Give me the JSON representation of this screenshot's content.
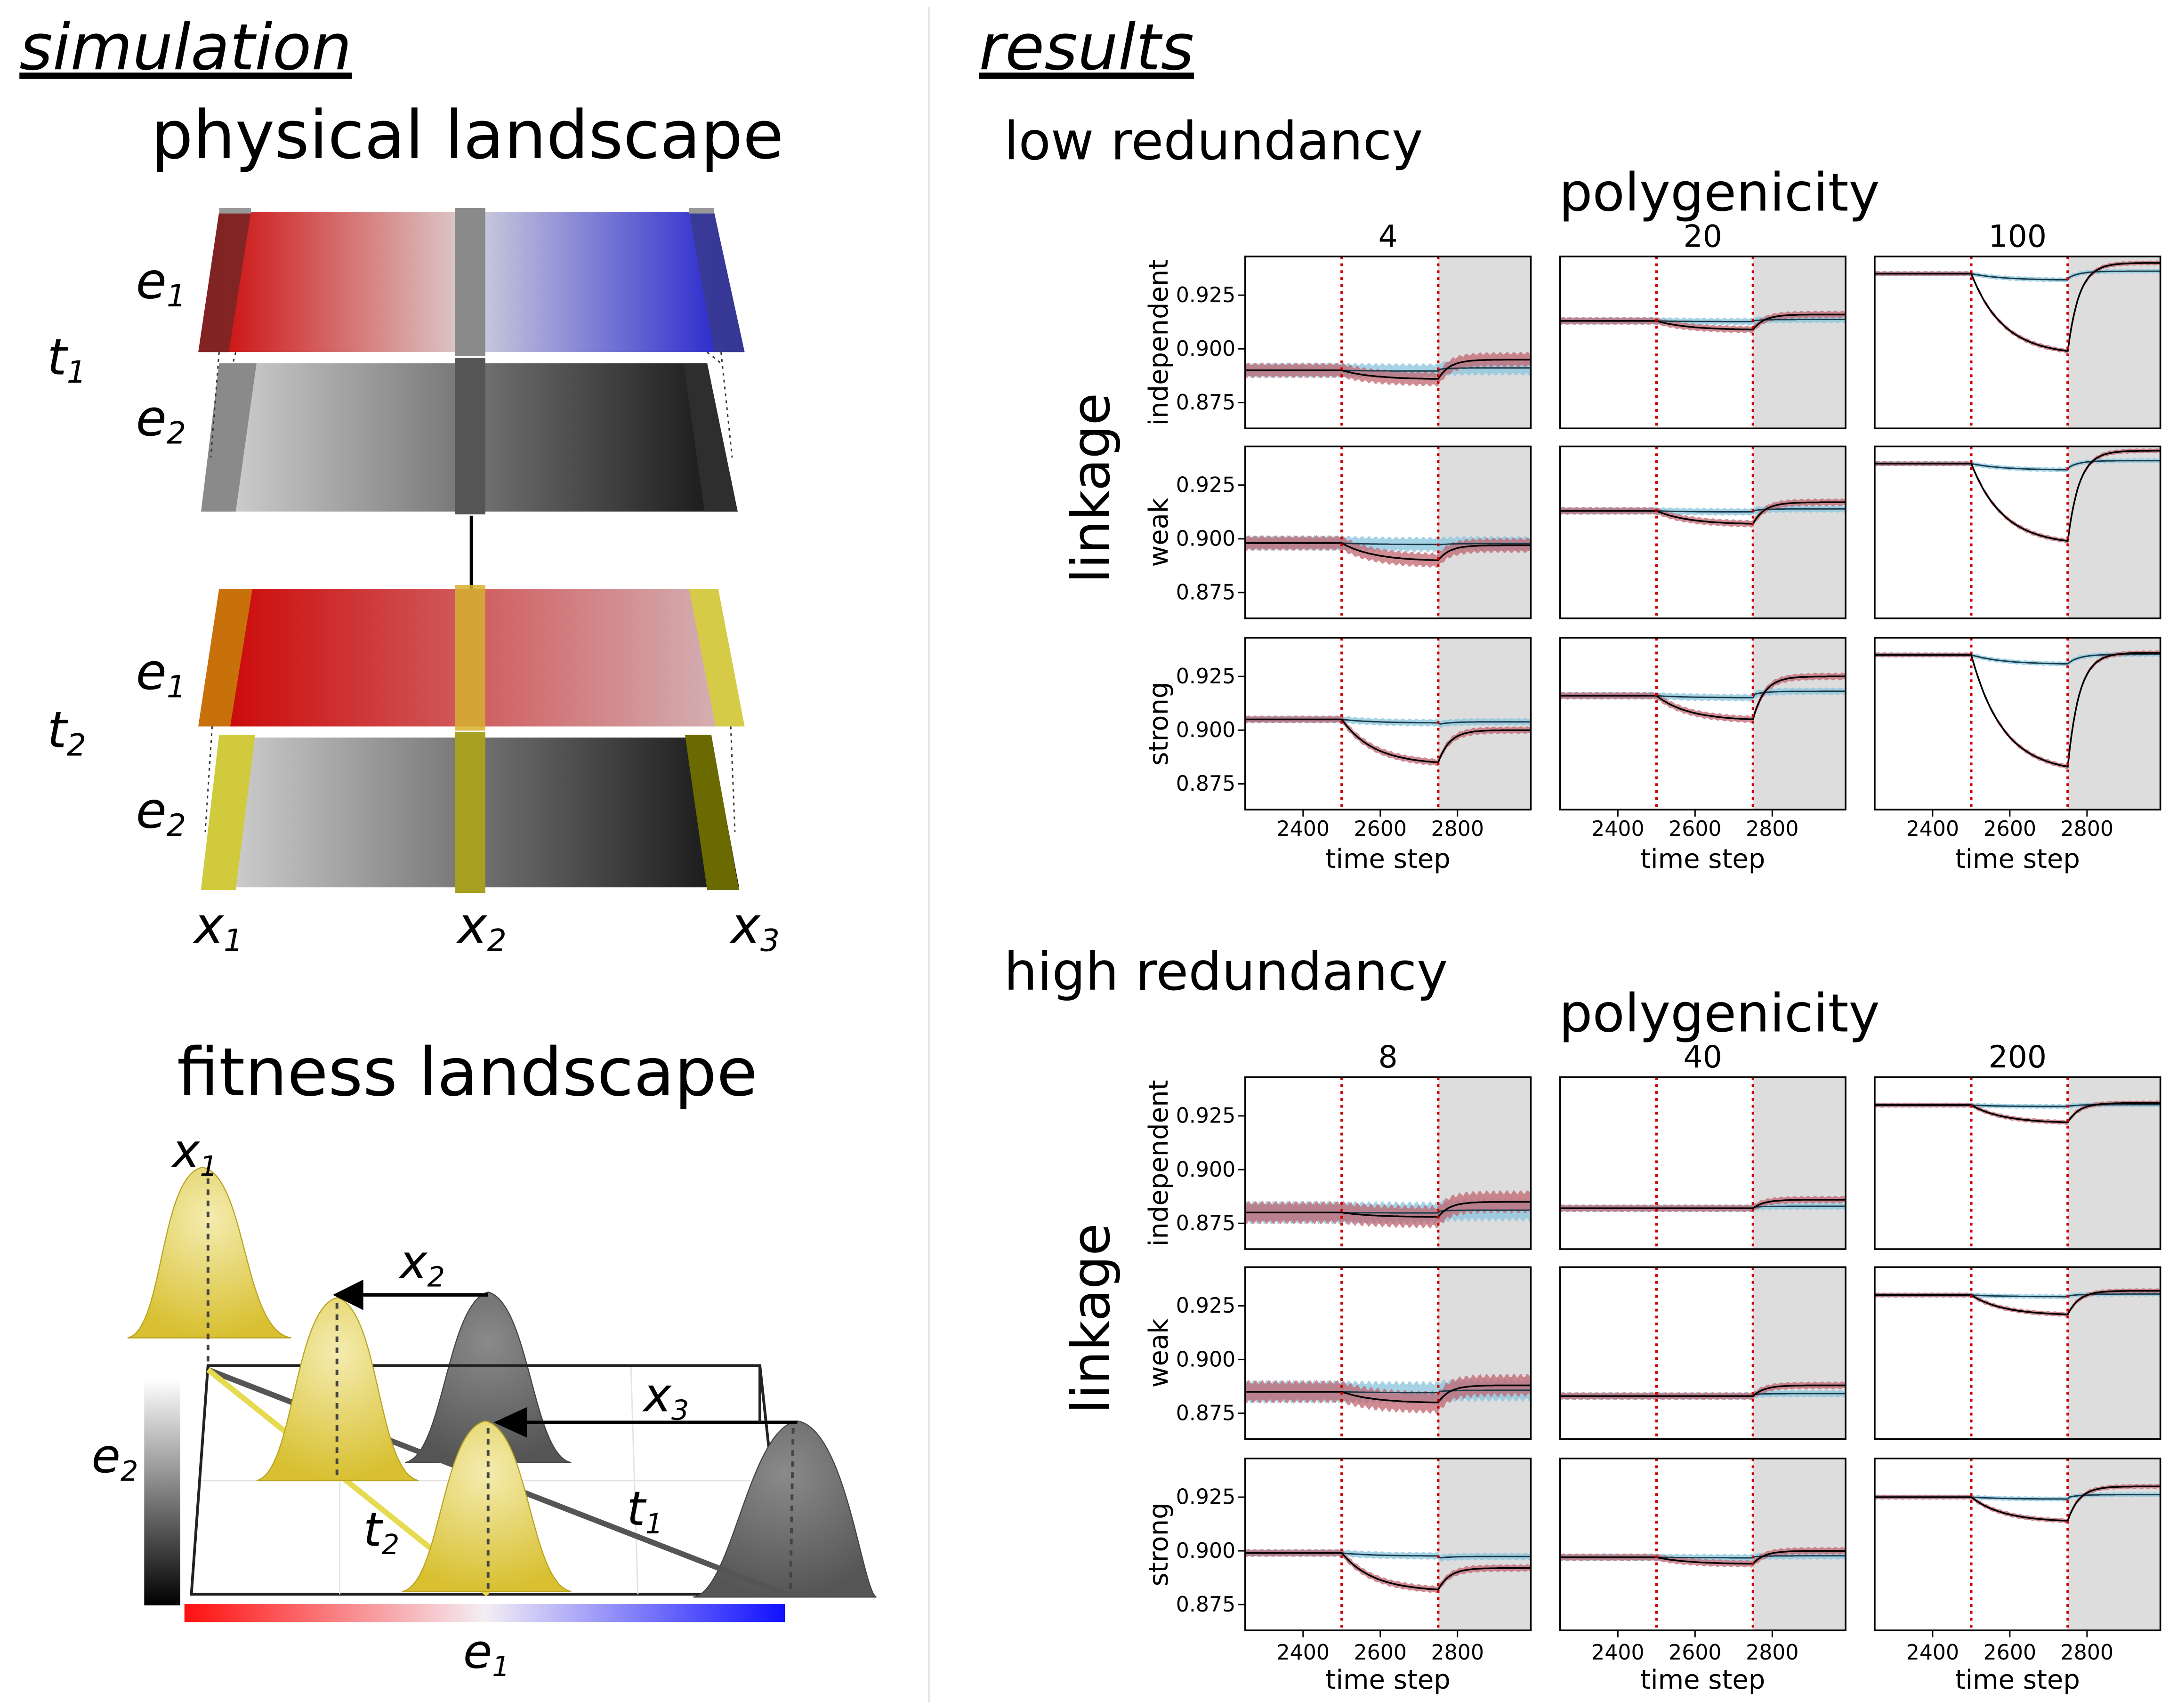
{
  "left_panel": {
    "heading": "simulation",
    "physical_title": "physical landscape",
    "time_labels": {
      "t1_main": "t",
      "t1_sub": "1",
      "t2_main": "t",
      "t2_sub": "2"
    },
    "env_labels": {
      "e1_main": "e",
      "e1_sub": "1",
      "e2_main": "e",
      "e2_sub": "2"
    },
    "position_labels": [
      {
        "main": "x",
        "sub": "1"
      },
      {
        "main": "x",
        "sub": "2"
      },
      {
        "main": "x",
        "sub": "3"
      }
    ],
    "fitness_title": "fitness landscape",
    "fitness_labels": {
      "x1_main": "x",
      "x1_sub": "1",
      "x2_main": "x",
      "x2_sub": "2",
      "x3_main": "x",
      "x3_sub": "3",
      "t1_main": "t",
      "t1_sub": "1",
      "t2_main": "t",
      "t2_sub": "2",
      "e2_main": "e",
      "e2_sub": "2",
      "e1_main": "e",
      "e1_sub": "1"
    },
    "colors": {
      "highlight": "#d8d040",
      "red": "#cc1010",
      "blue": "#2222cc",
      "gray": "#777777"
    }
  },
  "right_panel": {
    "heading": "results",
    "x_ticks": [
      2400,
      2600,
      2800
    ],
    "y_ticks": [
      0.875,
      0.9,
      0.925
    ],
    "y_tick_labels": [
      "0.875",
      "0.900",
      "0.925"
    ],
    "x_range": [
      2250,
      2990
    ],
    "y_range": [
      0.863,
      0.943
    ],
    "shock_start": 2500,
    "shock_end": 2750,
    "x_label": "time step",
    "row_label": "linkage",
    "row_names": [
      "independent",
      "weak",
      "strong"
    ],
    "col_group_label": "polygenicity",
    "colors": {
      "red_band": "#c0646f",
      "blue_band": "#8fc8df",
      "shade": "#dddddd",
      "vline": "#cc0000"
    },
    "sections": [
      {
        "title": "low redundancy",
        "columns": [
          "4",
          "20",
          "100"
        ],
        "panels": [
          [
            {
              "base": 0.89,
              "min": 0.886,
              "after": 0.895,
              "bw": 0.006
            },
            {
              "base": 0.913,
              "min": 0.909,
              "after": 0.916,
              "bw": 0.003
            },
            {
              "base": 0.935,
              "min": 0.899,
              "after": 0.94,
              "bw": 0.002
            }
          ],
          [
            {
              "base": 0.898,
              "min": 0.89,
              "after": 0.897,
              "bw": 0.006
            },
            {
              "base": 0.913,
              "min": 0.907,
              "after": 0.917,
              "bw": 0.003
            },
            {
              "base": 0.935,
              "min": 0.899,
              "after": 0.941,
              "bw": 0.002
            }
          ],
          [
            {
              "base": 0.905,
              "min": 0.885,
              "after": 0.9,
              "bw": 0.003
            },
            {
              "base": 0.916,
              "min": 0.905,
              "after": 0.925,
              "bw": 0.003
            },
            {
              "base": 0.935,
              "min": 0.883,
              "after": 0.936,
              "bw": 0.002
            }
          ]
        ]
      },
      {
        "title": "high redundancy",
        "columns": [
          "8",
          "40",
          "200"
        ],
        "panels": [
          [
            {
              "base": 0.88,
              "min": 0.878,
              "after": 0.885,
              "bw": 0.009
            },
            {
              "base": 0.882,
              "min": 0.882,
              "after": 0.886,
              "bw": 0.003
            },
            {
              "base": 0.93,
              "min": 0.922,
              "after": 0.931,
              "bw": 0.002
            }
          ],
          [
            {
              "base": 0.885,
              "min": 0.88,
              "after": 0.888,
              "bw": 0.009
            },
            {
              "base": 0.883,
              "min": 0.883,
              "after": 0.888,
              "bw": 0.003
            },
            {
              "base": 0.93,
              "min": 0.921,
              "after": 0.932,
              "bw": 0.002
            }
          ],
          [
            {
              "base": 0.899,
              "min": 0.882,
              "after": 0.892,
              "bw": 0.003
            },
            {
              "base": 0.897,
              "min": 0.894,
              "after": 0.9,
              "bw": 0.003
            },
            {
              "base": 0.925,
              "min": 0.914,
              "after": 0.93,
              "bw": 0.002
            }
          ]
        ]
      }
    ]
  }
}
